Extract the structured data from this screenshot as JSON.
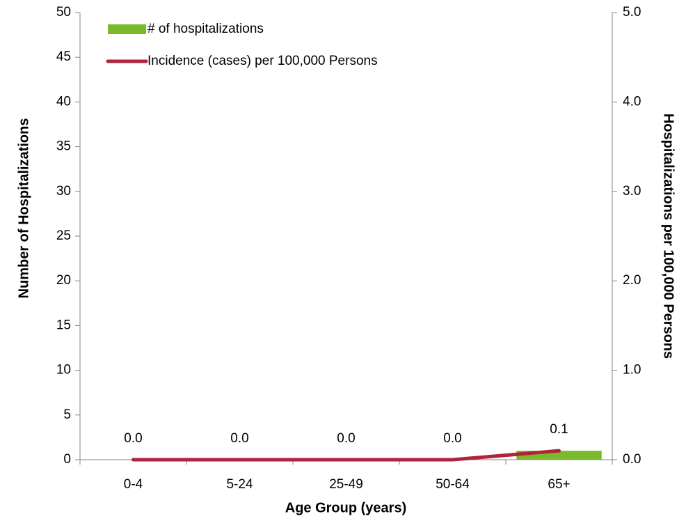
{
  "chart_data": {
    "type": "combo",
    "x_label": "Age Group (years)",
    "y_label": "Number of Hospitalizations",
    "y2_label": "Hospitalizations per 100,000 Persons",
    "categories": [
      "0-4",
      "5-24",
      "25-49",
      "50-64",
      "65+"
    ],
    "series": [
      {
        "name": "# of hospitalizations",
        "type": "bar",
        "color": "#7ab929",
        "values": [
          0,
          0,
          0,
          0,
          1
        ]
      },
      {
        "name": "Incidence (cases) per 100,000 Persons",
        "type": "line",
        "axis": "y2",
        "color": "#b0243b",
        "values": [
          0,
          0,
          0,
          0,
          0.1
        ],
        "value_labels": [
          "0.0",
          "0.0",
          "0.0",
          "0.0",
          "0.1"
        ]
      }
    ],
    "ylim": [
      0,
      50
    ],
    "yticks": [
      0,
      5,
      10,
      15,
      20,
      25,
      30,
      35,
      40,
      45,
      50
    ],
    "y2lim": [
      0,
      5
    ],
    "y2ticks": [
      {
        "value": 0,
        "label": "0.0"
      },
      {
        "value": 1,
        "label": "1.0"
      },
      {
        "value": 2,
        "label": "2.0"
      },
      {
        "value": 3,
        "label": "3.0"
      },
      {
        "value": 4,
        "label": "4.0"
      },
      {
        "value": 5,
        "label": "5.0"
      }
    ],
    "legend": "top-left"
  }
}
